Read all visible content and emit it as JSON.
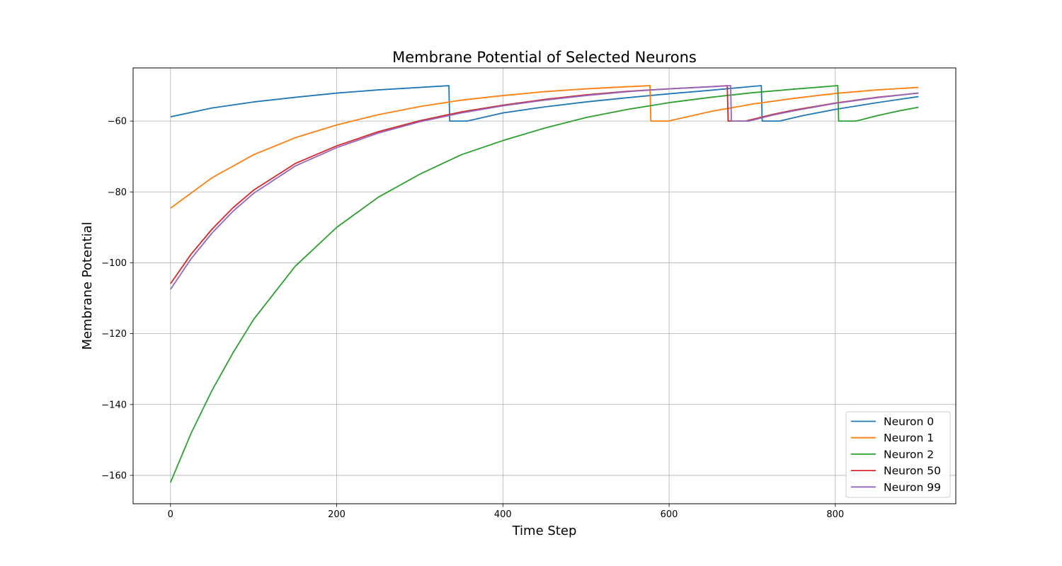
{
  "chart_data": {
    "type": "line",
    "title": "Membrane Potential of Selected Neurons",
    "xlabel": "Time Step",
    "ylabel": "Membrane Potential",
    "xlim": [
      -45,
      945
    ],
    "ylim": [
      -168,
      -45
    ],
    "xticks": [
      0,
      200,
      400,
      600,
      800
    ],
    "yticks": [
      -60,
      -80,
      -100,
      -120,
      -140,
      -160
    ],
    "xtick_labels": [
      "0",
      "200",
      "400",
      "600",
      "800"
    ],
    "ytick_labels": [
      "−60",
      "−80",
      "−100",
      "−120",
      "−140",
      "−160"
    ],
    "grid": true,
    "legend_position": "lower-right",
    "rest_potential": -50,
    "reset_potential": -60,
    "series": [
      {
        "name": "Neuron 0",
        "color": "#1f77b4",
        "points": [
          [
            0,
            -58.8
          ],
          [
            50,
            -56.3
          ],
          [
            100,
            -54.6
          ],
          [
            150,
            -53.3
          ],
          [
            200,
            -52.1
          ],
          [
            250,
            -51.2
          ],
          [
            300,
            -50.5
          ],
          [
            335,
            -50.0
          ],
          [
            336,
            -60
          ],
          [
            357,
            -60
          ],
          [
            400,
            -57.7
          ],
          [
            450,
            -56.0
          ],
          [
            500,
            -54.6
          ],
          [
            550,
            -53.4
          ],
          [
            600,
            -52.3
          ],
          [
            650,
            -51.3
          ],
          [
            711,
            -50.0
          ],
          [
            712,
            -60
          ],
          [
            733,
            -60
          ],
          [
            760,
            -58.5
          ],
          [
            800,
            -56.7
          ],
          [
            850,
            -54.8
          ],
          [
            900,
            -53.1
          ]
        ]
      },
      {
        "name": "Neuron 1",
        "color": "#ff7f0e",
        "points": [
          [
            0,
            -84.6
          ],
          [
            50,
            -76.0
          ],
          [
            100,
            -69.5
          ],
          [
            150,
            -64.7
          ],
          [
            200,
            -61.1
          ],
          [
            250,
            -58.2
          ],
          [
            300,
            -55.9
          ],
          [
            350,
            -54.1
          ],
          [
            400,
            -52.8
          ],
          [
            450,
            -51.7
          ],
          [
            500,
            -50.9
          ],
          [
            550,
            -50.3
          ],
          [
            577,
            -50.0
          ],
          [
            578,
            -60
          ],
          [
            599,
            -60
          ],
          [
            650,
            -57.3
          ],
          [
            700,
            -55.2
          ],
          [
            750,
            -53.6
          ],
          [
            800,
            -52.2
          ],
          [
            850,
            -51.2
          ],
          [
            900,
            -50.5
          ]
        ]
      },
      {
        "name": "Neuron 2",
        "color": "#2ca02c",
        "points": [
          [
            0,
            -162.0
          ],
          [
            25,
            -148.0
          ],
          [
            50,
            -136.0
          ],
          [
            75,
            -125.5
          ],
          [
            100,
            -116.0
          ],
          [
            150,
            -101.0
          ],
          [
            200,
            -90.0
          ],
          [
            250,
            -81.5
          ],
          [
            300,
            -75.0
          ],
          [
            350,
            -69.5
          ],
          [
            400,
            -65.5
          ],
          [
            450,
            -62.0
          ],
          [
            500,
            -59.0
          ],
          [
            550,
            -56.7
          ],
          [
            600,
            -54.8
          ],
          [
            650,
            -53.3
          ],
          [
            700,
            -52.0
          ],
          [
            750,
            -51.0
          ],
          [
            803,
            -50.0
          ],
          [
            804,
            -60
          ],
          [
            825,
            -60
          ],
          [
            850,
            -58.5
          ],
          [
            875,
            -57.2
          ],
          [
            900,
            -56.1
          ]
        ]
      },
      {
        "name": "Neuron 50",
        "color": "#d62728",
        "points": [
          [
            0,
            -105.9
          ],
          [
            25,
            -97.5
          ],
          [
            50,
            -90.5
          ],
          [
            75,
            -84.5
          ],
          [
            100,
            -79.5
          ],
          [
            150,
            -72.0
          ],
          [
            200,
            -67.0
          ],
          [
            250,
            -63.0
          ],
          [
            300,
            -59.9
          ],
          [
            350,
            -57.4
          ],
          [
            400,
            -55.5
          ],
          [
            450,
            -53.9
          ],
          [
            500,
            -52.6
          ],
          [
            550,
            -51.6
          ],
          [
            600,
            -50.9
          ],
          [
            650,
            -50.3
          ],
          [
            670,
            -50.0
          ],
          [
            671,
            -60
          ],
          [
            692,
            -60
          ],
          [
            725,
            -58.1
          ],
          [
            750,
            -56.9
          ],
          [
            800,
            -54.9
          ],
          [
            850,
            -53.3
          ],
          [
            900,
            -52.1
          ]
        ]
      },
      {
        "name": "Neuron 99",
        "color": "#9467bd",
        "points": [
          [
            0,
            -107.5
          ],
          [
            25,
            -98.8
          ],
          [
            50,
            -91.6
          ],
          [
            75,
            -85.5
          ],
          [
            100,
            -80.4
          ],
          [
            150,
            -72.7
          ],
          [
            200,
            -67.5
          ],
          [
            250,
            -63.4
          ],
          [
            300,
            -60.2
          ],
          [
            350,
            -57.7
          ],
          [
            400,
            -55.7
          ],
          [
            450,
            -54.1
          ],
          [
            500,
            -52.8
          ],
          [
            550,
            -51.7
          ],
          [
            600,
            -50.9
          ],
          [
            650,
            -50.3
          ],
          [
            674,
            -50.0
          ],
          [
            675,
            -60
          ],
          [
            696,
            -60
          ],
          [
            725,
            -58.3
          ],
          [
            750,
            -57.1
          ],
          [
            800,
            -55.0
          ],
          [
            850,
            -53.4
          ],
          [
            900,
            -52.1
          ]
        ]
      }
    ]
  }
}
